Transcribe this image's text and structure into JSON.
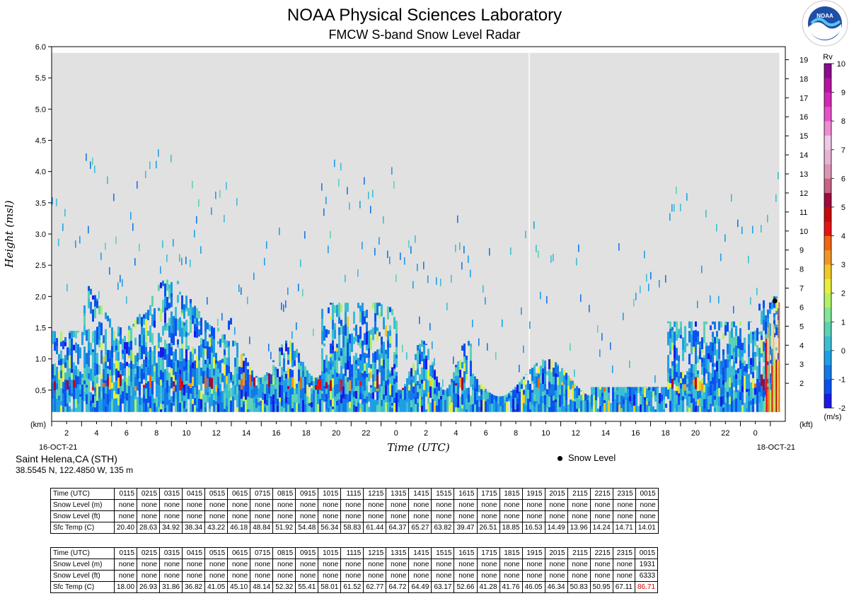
{
  "title": "NOAA Physical Sciences Laboratory",
  "subtitle": "FMCW S-band Snow Level Radar",
  "logo": {
    "text": "NOAA",
    "icon": "noaa-seal"
  },
  "station": {
    "name": "Saint Helena,CA (STH)",
    "coords": "38.5545 N, 122.4850 W, 135 m"
  },
  "legend": {
    "snow_level_label": "Snow Level"
  },
  "chart_data": {
    "type": "heatmap",
    "title": "NOAA Physical Sciences Laboratory",
    "subtitle": "FMCW S-band Snow Level Radar",
    "xlabel": "Time (UTC)",
    "ylabel": "Height (msl)",
    "y_unit_left": "(km)",
    "y_unit_right": "(kft)",
    "xlim_hours": [
      0,
      49
    ],
    "ylim_km": [
      0.0,
      6.0
    ],
    "y_ticks_km": [
      "0.5",
      "1.0",
      "1.5",
      "2.0",
      "2.5",
      "3.0",
      "3.5",
      "4.0",
      "4.5",
      "5.0",
      "5.5",
      "6.0"
    ],
    "y_ticks_kft": [
      "2",
      "3",
      "4",
      "5",
      "6",
      "7",
      "8",
      "9",
      "10",
      "11",
      "12",
      "13",
      "14",
      "15",
      "16",
      "17",
      "18",
      "19"
    ],
    "x_tick_labels": [
      "2",
      "4",
      "6",
      "8",
      "10",
      "12",
      "14",
      "16",
      "18",
      "20",
      "22",
      "0",
      "2",
      "4",
      "6",
      "8",
      "10",
      "12",
      "14",
      "16",
      "18",
      "20",
      "22",
      "0"
    ],
    "date_start": "16-OCT-21",
    "date_end": "18-OCT-21",
    "colorbar": {
      "label": "Rv",
      "unit": "(m/s)",
      "range": [
        -2,
        10
      ],
      "tick_labels": [
        "10",
        "9",
        "8",
        "7",
        "6",
        "5",
        "4",
        "3",
        "2",
        "1",
        "0",
        "-1",
        "-2"
      ],
      "colors": [
        "#1a1ae6",
        "#0a50f0",
        "#1478e6",
        "#1e9ee6",
        "#3cbed2",
        "#5ad2b4",
        "#82e696",
        "#b4f064",
        "#e6f03c",
        "#f0c828",
        "#f09628",
        "#f06414",
        "#e61414",
        "#c80a0a",
        "#a00a3c",
        "#c86482",
        "#dc96b4",
        "#e6b4d2",
        "#f0c8e6",
        "#f08cd2",
        "#e650c8",
        "#d228b4",
        "#b414a0",
        "#8c0a8c"
      ]
    },
    "background_color": "#e1e1e1",
    "snow_level": {
      "time_hours": 48.3,
      "height_km": 1.93
    }
  },
  "tables": [
    {
      "headers": [
        "Time (UTC)",
        "0115",
        "0215",
        "0315",
        "0415",
        "0515",
        "0615",
        "0715",
        "0815",
        "0915",
        "1015",
        "1115",
        "1215",
        "1315",
        "1415",
        "1515",
        "1615",
        "1715",
        "1815",
        "1915",
        "2015",
        "2115",
        "2215",
        "2315",
        "0015"
      ],
      "rows": [
        [
          "Snow Level (m)",
          "none",
          "none",
          "none",
          "none",
          "none",
          "none",
          "none",
          "none",
          "none",
          "none",
          "none",
          "none",
          "none",
          "none",
          "none",
          "none",
          "none",
          "none",
          "none",
          "none",
          "none",
          "none",
          "none",
          "none"
        ],
        [
          "Snow Level (ft)",
          "none",
          "none",
          "none",
          "none",
          "none",
          "none",
          "none",
          "none",
          "none",
          "none",
          "none",
          "none",
          "none",
          "none",
          "none",
          "none",
          "none",
          "none",
          "none",
          "none",
          "none",
          "none",
          "none",
          "none"
        ],
        [
          "Sfc Temp (C)",
          "20.40",
          "28.63",
          "34.92",
          "38.34",
          "43.22",
          "46.18",
          "48.84",
          "51.92",
          "54.48",
          "56.34",
          "58.83",
          "61.44",
          "64.37",
          "65.27",
          "63.82",
          "39.47",
          "26.51",
          "18.85",
          "16.53",
          "14.49",
          "13.96",
          "14.24",
          "14.71",
          "14.01"
        ]
      ]
    },
    {
      "headers": [
        "Time (UTC)",
        "0115",
        "0215",
        "0315",
        "0415",
        "0515",
        "0615",
        "0715",
        "0815",
        "0915",
        "1015",
        "1115",
        "1215",
        "1315",
        "1415",
        "1515",
        "1615",
        "1715",
        "1815",
        "1915",
        "2015",
        "2115",
        "2215",
        "2315",
        "0015"
      ],
      "rows": [
        [
          "Snow Level (m)",
          "none",
          "none",
          "none",
          "none",
          "none",
          "none",
          "none",
          "none",
          "none",
          "none",
          "none",
          "none",
          "none",
          "none",
          "none",
          "none",
          "none",
          "none",
          "none",
          "none",
          "none",
          "none",
          "none",
          "1931"
        ],
        [
          "Snow Level (ft)",
          "none",
          "none",
          "none",
          "none",
          "none",
          "none",
          "none",
          "none",
          "none",
          "none",
          "none",
          "none",
          "none",
          "none",
          "none",
          "none",
          "none",
          "none",
          "none",
          "none",
          "none",
          "none",
          "none",
          "6333"
        ],
        [
          "Sfc Temp (C)",
          "18.00",
          "26.93",
          "31.86",
          "36.82",
          "41.05",
          "45.10",
          "48.14",
          "52.32",
          "55.41",
          "58.01",
          "61.52",
          "62.77",
          "64.72",
          "64.49",
          "63.17",
          "52.66",
          "41.28",
          "41.76",
          "46.05",
          "46.34",
          "50.83",
          "50.95",
          "67.11",
          "86.71"
        ]
      ],
      "highlight": {
        "row": 2,
        "col": 24,
        "color": "#d40000"
      }
    }
  ]
}
